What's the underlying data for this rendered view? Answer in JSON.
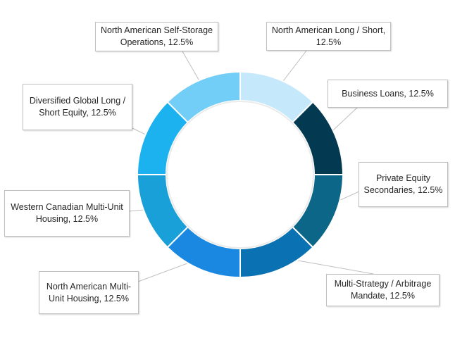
{
  "chart_data": {
    "type": "pie",
    "variant": "donut",
    "title": "",
    "legend": "none",
    "slices": [
      {
        "name": "North American Long / Short",
        "value": 12.5,
        "label": "North American Long / Short, 12.5%",
        "color": "#c5e8fb"
      },
      {
        "name": "Business Loans",
        "value": 12.5,
        "label": "Business Loans, 12.5%",
        "color": "#033a52"
      },
      {
        "name": "Private Equity Secondaries",
        "value": 12.5,
        "label": "Private Equity Secondaries, 12.5%",
        "color": "#0b6688"
      },
      {
        "name": "Multi-Strategy / Arbitrage Mandate",
        "value": 12.5,
        "label": "Multi-Strategy / Arbitrage Mandate, 12.5%",
        "color": "#0a71b2"
      },
      {
        "name": "North American Multi-Unit Housing",
        "value": 12.5,
        "label": "North American Multi-Unit Housing, 12.5%",
        "color": "#1a88e1"
      },
      {
        "name": "Western Canadian Multi-Unit Housing",
        "value": 12.5,
        "label": "Western Canadian Multi-Unit Housing, 12.5%",
        "color": "#1aa0d8"
      },
      {
        "name": "Diversified Global Long / Short Equity",
        "value": 12.5,
        "label": "Diversified Global Long / Short Equity, 12.5%",
        "color": "#1cb1ef"
      },
      {
        "name": "North American Self-Storage Operations",
        "value": 12.5,
        "label": "North American Self-Storage Operations, 12.5%",
        "color": "#72cdf7"
      }
    ]
  }
}
